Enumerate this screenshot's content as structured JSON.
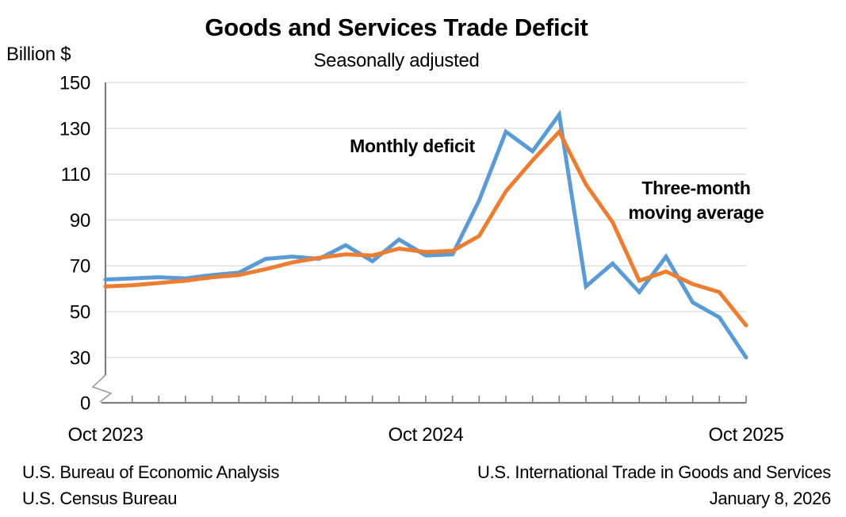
{
  "chart_data": {
    "type": "line",
    "title": "Goods and Services Trade Deficit",
    "subtitle": "Seasonally adjusted",
    "ylabel": "Billion $",
    "xlabel": "",
    "grid": "horizontal",
    "legend_position": "inline-annotations",
    "y_ticks": [
      150,
      130,
      110,
      90,
      70,
      50,
      30,
      0
    ],
    "y_axis_break_between": [
      0,
      30
    ],
    "ylim_displayed": [
      30,
      150
    ],
    "x": [
      "Oct 2023",
      "Nov 2023",
      "Dec 2023",
      "Jan 2024",
      "Feb 2024",
      "Mar 2024",
      "Apr 2024",
      "May 2024",
      "Jun 2024",
      "Jul 2024",
      "Aug 2024",
      "Sep 2024",
      "Oct 2024",
      "Nov 2024",
      "Dec 2024",
      "Jan 2025",
      "Feb 2025",
      "Mar 2025",
      "Apr 2025",
      "May 2025",
      "Jun 2025",
      "Jul 2025",
      "Aug 2025",
      "Sep 2025",
      "Oct 2025"
    ],
    "x_tick_labels": [
      {
        "label": "Oct 2023",
        "month_index": 0
      },
      {
        "label": "Oct 2024",
        "month_index": 12
      },
      {
        "label": "Oct 2025",
        "month_index": 24
      }
    ],
    "series": [
      {
        "name": "Monthly deficit",
        "color": "#5B9BD5",
        "values": [
          64,
          64.5,
          65,
          64.5,
          66,
          67,
          73,
          74,
          73,
          79,
          72,
          81.5,
          74.5,
          75,
          98.5,
          128.5,
          120,
          136,
          61,
          71,
          58.5,
          74,
          54,
          47.5,
          30
        ]
      },
      {
        "name": "Three-month moving average",
        "color": "#ED7D31",
        "values": [
          61,
          61.5,
          62.5,
          63.5,
          65,
          66,
          68.5,
          71.5,
          73.5,
          75,
          74.5,
          77.5,
          76,
          76.5,
          83,
          102.5,
          116,
          128.5,
          105.5,
          89,
          63.5,
          67.5,
          62,
          58.5,
          44
        ]
      }
    ],
    "series_labels": {
      "monthly": "Monthly deficit",
      "ma_line1": "Three-month",
      "ma_line2": "moving average"
    }
  },
  "footer": {
    "left_line1": "U.S. Bureau of Economic Analysis",
    "left_line2": "U.S. Census Bureau",
    "right_line1": "U.S. International Trade in Goods and Services",
    "right_line2": "January 8, 2026"
  },
  "colors": {
    "monthly_line": "#5B9BD5",
    "moving_average_line": "#ED7D31",
    "axis": "#7F7F7F",
    "gridline": "#D9D9D9",
    "text": "#000000",
    "background": "#FFFFFF"
  }
}
